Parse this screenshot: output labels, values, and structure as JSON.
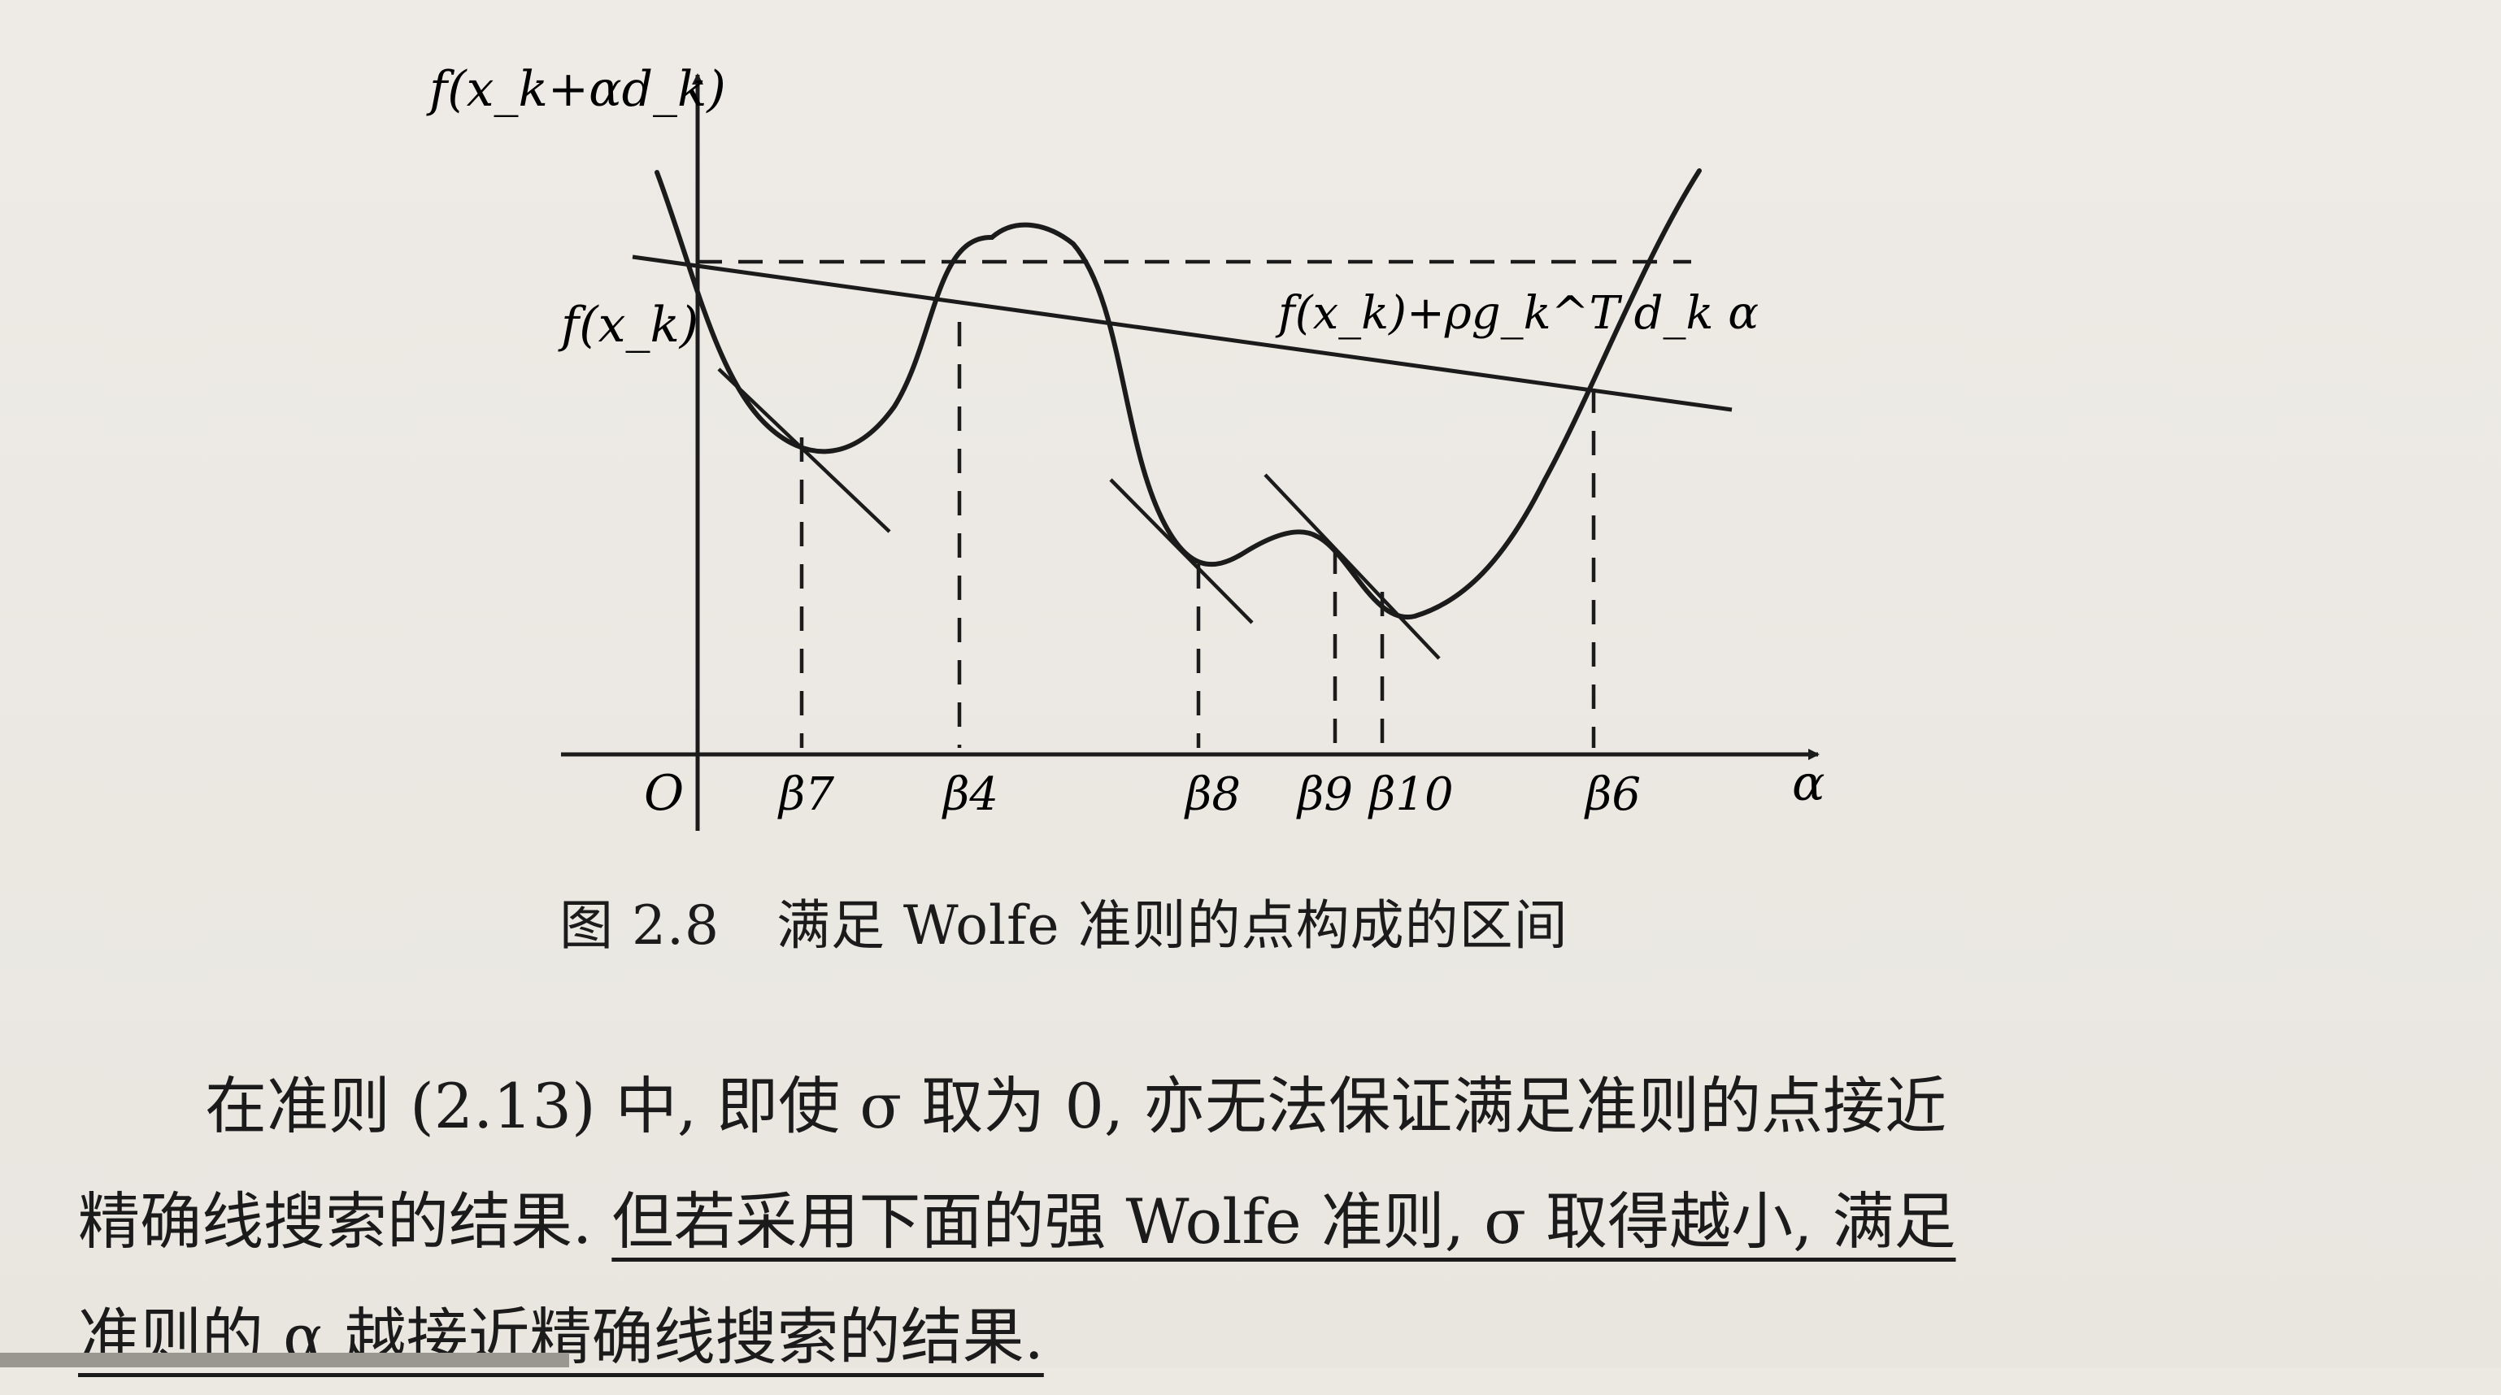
{
  "figure": {
    "y_axis_label": "f(x_k+αd_k)",
    "fxk_label": "f(x_k)",
    "line_label": "f(x_k)+ρg_k^T d_k α",
    "origin_label": "O",
    "x_axis_label": "α",
    "beta_labels": [
      "β7",
      "β4",
      "β8",
      "β9",
      "β10",
      "β6"
    ]
  },
  "caption": {
    "number": "图 2.8",
    "text": "满足 Wolfe 准则的点构成的区间"
  },
  "paragraph": {
    "line1": "在准则 (2.13) 中, 即使 σ 取为 0, 亦无法保证满足准则的点接近",
    "line2_plain": "精确线搜索的结果. ",
    "line2_underlined": "但若采用下面的强 Wolfe 准则, σ 取得越小, 满足",
    "line3_underlined": "准则的 α 越接近精确线搜索的结果."
  }
}
